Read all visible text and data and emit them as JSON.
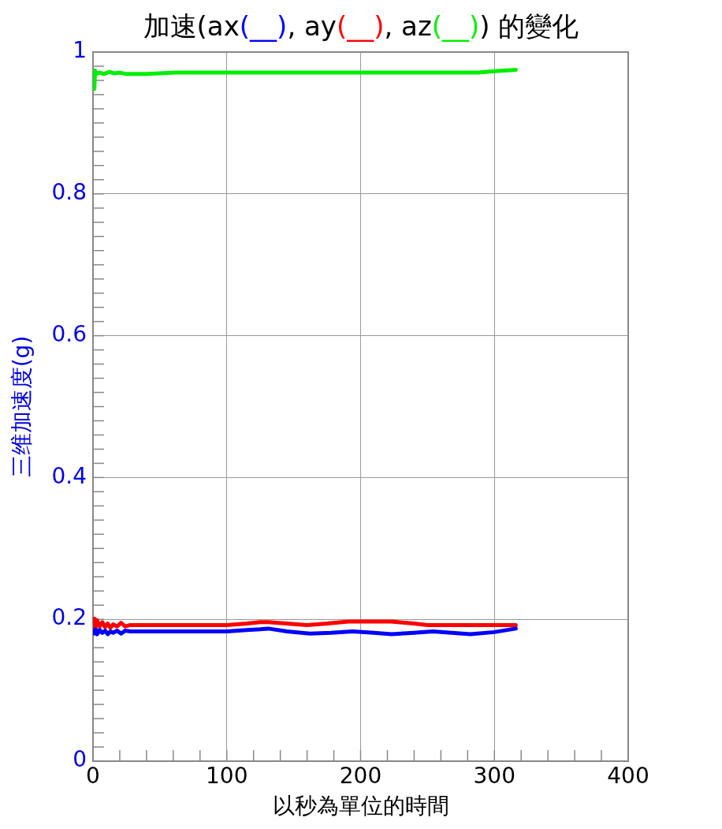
{
  "chart_data": {
    "type": "line",
    "title": "加速(ax(__), ay(__), az(__)) 的變化",
    "xlabel": "以秒為單位的時間",
    "ylabel": "三维加速度(g)",
    "xlim": [
      0,
      400
    ],
    "ylim": [
      0,
      1
    ],
    "xticks": [
      0,
      {
        "value": 20,
        "label": null
      },
      {
        "value": 40,
        "label": null
      },
      {
        "value": 60,
        "label": null
      },
      {
        "value": 80,
        "label": null
      },
      100,
      {
        "value": 120,
        "label": null
      },
      {
        "value": 140,
        "label": null
      },
      {
        "value": 160,
        "label": null
      },
      {
        "value": 180,
        "label": null
      },
      200,
      {
        "value": 220,
        "label": null
      },
      {
        "value": 240,
        "label": null
      },
      {
        "value": 260,
        "label": null
      },
      {
        "value": 280,
        "label": null
      },
      300,
      {
        "value": 320,
        "label": null
      },
      {
        "value": 340,
        "label": null
      },
      {
        "value": 360,
        "label": null
      },
      {
        "value": 380,
        "label": null
      },
      400
    ],
    "yticks": [
      0,
      {
        "value": 0.02,
        "label": null
      },
      {
        "value": 0.04,
        "label": null
      },
      {
        "value": 0.06,
        "label": null
      },
      {
        "value": 0.08,
        "label": null
      },
      {
        "value": 0.1,
        "label": null
      },
      {
        "value": 0.12,
        "label": null
      },
      {
        "value": 0.14,
        "label": null
      },
      {
        "value": 0.16,
        "label": null
      },
      {
        "value": 0.18,
        "label": null
      },
      0.2,
      {
        "value": 0.22,
        "label": null
      },
      {
        "value": 0.24,
        "label": null
      },
      {
        "value": 0.26,
        "label": null
      },
      {
        "value": 0.28,
        "label": null
      },
      {
        "value": 0.3,
        "label": null
      },
      {
        "value": 0.32,
        "label": null
      },
      {
        "value": 0.34,
        "label": null
      },
      {
        "value": 0.36,
        "label": null
      },
      {
        "value": 0.38,
        "label": null
      },
      0.4,
      {
        "value": 0.42,
        "label": null
      },
      {
        "value": 0.44,
        "label": null
      },
      {
        "value": 0.46,
        "label": null
      },
      {
        "value": 0.48,
        "label": null
      },
      {
        "value": 0.5,
        "label": null
      },
      {
        "value": 0.52,
        "label": null
      },
      {
        "value": 0.54,
        "label": null
      },
      {
        "value": 0.56,
        "label": null
      },
      {
        "value": 0.58,
        "label": null
      },
      0.6,
      {
        "value": 0.62,
        "label": null
      },
      {
        "value": 0.64,
        "label": null
      },
      {
        "value": 0.66,
        "label": null
      },
      {
        "value": 0.68,
        "label": null
      },
      {
        "value": 0.7,
        "label": null
      },
      {
        "value": 0.72,
        "label": null
      },
      {
        "value": 0.74,
        "label": null
      },
      {
        "value": 0.76,
        "label": null
      },
      {
        "value": 0.78,
        "label": null
      },
      0.8,
      {
        "value": 0.82,
        "label": null
      },
      {
        "value": 0.84,
        "label": null
      },
      {
        "value": 0.86,
        "label": null
      },
      {
        "value": 0.88,
        "label": null
      },
      {
        "value": 0.9,
        "label": null
      },
      {
        "value": 0.92,
        "label": null
      },
      {
        "value": 0.94,
        "label": null
      },
      {
        "value": 0.96,
        "label": null
      },
      {
        "value": 0.98,
        "label": null
      },
      1
    ],
    "grid": true,
    "series": [
      {
        "color": "#0000ff",
        "x": [
          0,
          1,
          2,
          3,
          5,
          7,
          9,
          11,
          13,
          15,
          18,
          21,
          24,
          28,
          40,
          60,
          80,
          100,
          115,
          125,
          131,
          145,
          162,
          178,
          194,
          210,
          223,
          240,
          254,
          268,
          282,
          300,
          316
        ],
        "values": [
          0.184,
          0.18,
          0.186,
          0.179,
          0.185,
          0.181,
          0.184,
          0.179,
          0.183,
          0.181,
          0.184,
          0.18,
          0.184,
          0.183,
          0.183,
          0.183,
          0.183,
          0.183,
          0.185,
          0.186,
          0.187,
          0.183,
          0.18,
          0.181,
          0.183,
          0.181,
          0.179,
          0.181,
          0.183,
          0.181,
          0.179,
          0.182,
          0.187
        ]
      },
      {
        "color": "#ff0000",
        "x": [
          0,
          1,
          2,
          3,
          5,
          7,
          9,
          11,
          13,
          15,
          18,
          21,
          24,
          28,
          60,
          100,
          115,
          125,
          131,
          145,
          160,
          175,
          191,
          223,
          240,
          250,
          280,
          316
        ],
        "values": [
          0.19,
          0.201,
          0.188,
          0.199,
          0.19,
          0.196,
          0.189,
          0.194,
          0.188,
          0.193,
          0.19,
          0.195,
          0.19,
          0.192,
          0.192,
          0.192,
          0.194,
          0.196,
          0.196,
          0.194,
          0.192,
          0.194,
          0.197,
          0.197,
          0.194,
          0.192,
          0.192,
          0.192
        ]
      },
      {
        "color": "#00ee00",
        "x": [
          0,
          1,
          1.5,
          2,
          3,
          5,
          8,
          12,
          16,
          20,
          25,
          40,
          62,
          100,
          200,
          288,
          300,
          316
        ],
        "values": [
          0.972,
          0.948,
          0.974,
          0.968,
          0.97,
          0.971,
          0.969,
          0.972,
          0.97,
          0.971,
          0.969,
          0.969,
          0.971,
          0.971,
          0.971,
          0.971,
          0.973,
          0.975
        ]
      }
    ]
  }
}
